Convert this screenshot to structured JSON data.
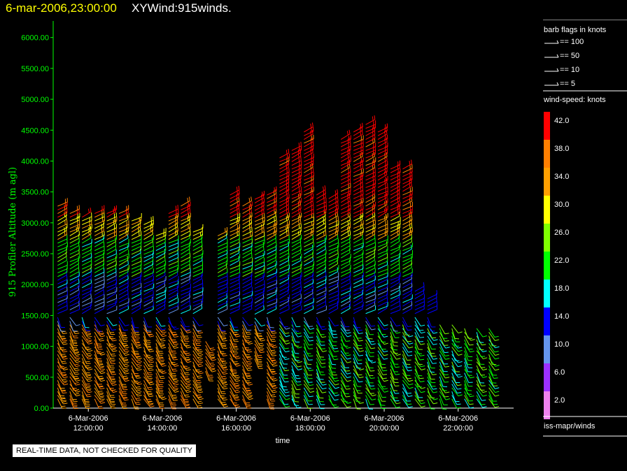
{
  "header": {
    "date": "6-mar-2006,23:00:00",
    "plot_name": "XYWind:915winds."
  },
  "notice": "REAL-TIME DATA, NOT CHECKED FOR QUALITY",
  "legend": {
    "barb_title": "barb flags in knots",
    "barb_items": [
      "== 100",
      "== 50",
      "== 10",
      "== 5"
    ],
    "speed_title": "wind-speed: knots",
    "speed_scale": [
      {
        "label": "42.0",
        "color": "#ff0000"
      },
      {
        "label": "38.0",
        "color": "#ff7f00"
      },
      {
        "label": "34.0",
        "color": "#ff9f00"
      },
      {
        "label": "30.0",
        "color": "#ffff00"
      },
      {
        "label": "26.0",
        "color": "#7fff00"
      },
      {
        "label": "22.0",
        "color": "#00ff00"
      },
      {
        "label": "18.0",
        "color": "#00ffff"
      },
      {
        "label": "14.0",
        "color": "#0000ff"
      },
      {
        "label": "10.0",
        "color": "#6495ed"
      },
      {
        "label": "6.0",
        "color": "#9b30ff"
      },
      {
        "label": "2.0",
        "color": "#ee82ee"
      }
    ],
    "source": "iss-mapr/winds"
  },
  "chart_data": {
    "type": "wind-barb profile",
    "ylabel": "915 Profiler Altitude (m agl)",
    "xlabel": "time",
    "ylim": [
      0,
      6200
    ],
    "yticks": [
      "0.00",
      "500.00",
      "1000.00",
      "1500.00",
      "2000.00",
      "2500.00",
      "3000.00",
      "3500.00",
      "4000.00",
      "4500.00",
      "5000.00",
      "5500.00",
      "6000.00"
    ],
    "xticks": [
      {
        "date": "6-Mar-2006",
        "time": "12:00:00",
        "hour": 12
      },
      {
        "date": "6-Mar-2006",
        "time": "14:00:00",
        "hour": 14
      },
      {
        "date": "6-Mar-2006",
        "time": "16:00:00",
        "hour": 16
      },
      {
        "date": "6-Mar-2006",
        "time": "18:00:00",
        "hour": 18
      },
      {
        "date": "6-Mar-2006",
        "time": "20:00:00",
        "hour": 20
      },
      {
        "date": "6-Mar-2006",
        "time": "22:00:00",
        "hour": 22
      }
    ],
    "xlim_hours": [
      11.05,
      23.5
    ],
    "profiles_time_hours": [
      11.17,
      11.5,
      11.83,
      12.17,
      12.5,
      12.83,
      13.17,
      13.5,
      13.83,
      14.17,
      14.5,
      14.83,
      15.17,
      15.5,
      15.83,
      16.17,
      16.5,
      16.83,
      17.17,
      17.5,
      17.83,
      18.17,
      18.5,
      18.83,
      19.17,
      19.5,
      19.83,
      20.17,
      20.5,
      20.83,
      21.17,
      21.5,
      21.83,
      22.17,
      22.5,
      22.83
    ],
    "profiles_top_m": [
      3300,
      3150,
      3100,
      3150,
      3200,
      3200,
      3050,
      3000,
      2800,
      3200,
      3300,
      2900,
      1100,
      2800,
      3500,
      3300,
      3400,
      3500,
      4100,
      4200,
      4500,
      3500,
      3400,
      4400,
      4500,
      4600,
      4500,
      3900,
      3900,
      1900,
      1800,
      1400,
      1400,
      1300,
      1300,
      1300
    ],
    "profiles_bottom_m": [
      150,
      150,
      150,
      150,
      150,
      150,
      150,
      150,
      150,
      150,
      150,
      150,
      600,
      150,
      150,
      150,
      800,
      150,
      150,
      150,
      150,
      150,
      150,
      150,
      150,
      150,
      150,
      150,
      150,
      150,
      150,
      150,
      150,
      150,
      150,
      150
    ],
    "speed_bands_knots": [
      {
        "from_m": 0,
        "to_m": 1400,
        "speed": 36
      },
      {
        "from_m": 1400,
        "to_m": 2100,
        "speed": 14
      },
      {
        "from_m": 2100,
        "to_m": 2700,
        "speed": 22
      },
      {
        "from_m": 2700,
        "to_m": 3050,
        "speed": 32
      },
      {
        "from_m": 3050,
        "to_m": 6000,
        "speed": 42
      }
    ]
  }
}
